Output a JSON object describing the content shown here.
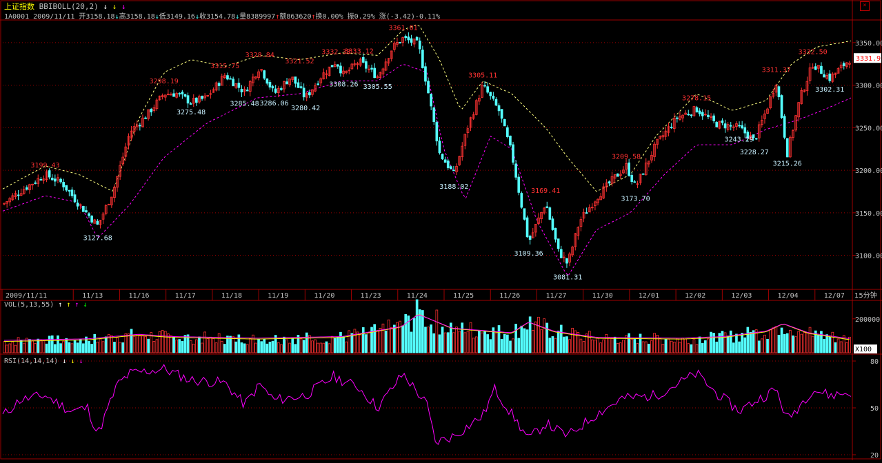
{
  "header": {
    "title": "上证指数",
    "indicator": "BBIBOLL(20,2)",
    "info": {
      "code": "1A0001",
      "date": "2009/11/11",
      "open": "开3158.18",
      "high": "高3158.18",
      "low": "低3149.16",
      "close": "收3154.78",
      "volume": "量8389997",
      "amount": "额863620",
      "turnover": "换0.00%",
      "amplitude": "振0.29%",
      "change": "涨(-3.42)-0.11%"
    }
  },
  "colors": {
    "up": "#ff3232",
    "down": "#54ffff",
    "grid": "#a00000",
    "axis_text": "#c0c0c0",
    "boll_upper": "#ffff80",
    "boll_lower": "#ff00ff",
    "rsi": "#ff00ff"
  },
  "price_panel": {
    "y_ticks": [
      "3350.00",
      "3300.00",
      "3250.00",
      "3200.00",
      "3150.00",
      "3100.00"
    ],
    "last_price": "3331.9",
    "period_label": "15分钟"
  },
  "x_axis": {
    "dates": [
      "2009/11/11",
      "11/13",
      "11/16",
      "11/17",
      "11/18",
      "11/19",
      "11/20",
      "11/23",
      "11/24",
      "11/25",
      "11/26",
      "11/27",
      "11/30",
      "12/01",
      "12/02",
      "12/03",
      "12/04",
      "12/07"
    ]
  },
  "vol_panel": {
    "label": "VOL(5,13,55)",
    "y_tick": "200000",
    "unit": "X100"
  },
  "rsi_panel": {
    "label": "RSI(14,14,14)",
    "y_ticks": [
      "80",
      "50",
      "20"
    ]
  },
  "chart_data": [
    {
      "type": "candlestick",
      "ylim": [
        3060,
        3375
      ],
      "annotations": [
        {
          "text": "3199.43",
          "value": 3199.43,
          "kind": "high",
          "pos": 0.05
        },
        {
          "text": "3127.68",
          "value": 3127.68,
          "kind": "low",
          "pos": 0.112
        },
        {
          "text": "3298.19",
          "value": 3298.19,
          "kind": "high",
          "pos": 0.19
        },
        {
          "text": "3275.48",
          "value": 3275.48,
          "kind": "low",
          "pos": 0.222
        },
        {
          "text": "3315.75",
          "value": 3315.75,
          "kind": "high",
          "pos": 0.262
        },
        {
          "text": "3328.84",
          "value": 3328.84,
          "kind": "high",
          "pos": 0.303
        },
        {
          "text": "3285.48",
          "value": 3285.48,
          "kind": "low",
          "pos": 0.285
        },
        {
          "text": "3286.06",
          "value": 3286.06,
          "kind": "low",
          "pos": 0.32
        },
        {
          "text": "3321.52",
          "value": 3321.52,
          "kind": "high",
          "pos": 0.35
        },
        {
          "text": "3280.42",
          "value": 3280.42,
          "kind": "low",
          "pos": 0.357
        },
        {
          "text": "3332.33",
          "value": 3332.33,
          "kind": "high",
          "pos": 0.393
        },
        {
          "text": "3333.12",
          "value": 3333.12,
          "kind": "high",
          "pos": 0.42
        },
        {
          "text": "3308.26",
          "value": 3308.26,
          "kind": "low",
          "pos": 0.402
        },
        {
          "text": "3305.55",
          "value": 3305.55,
          "kind": "low",
          "pos": 0.442
        },
        {
          "text": "3361.01",
          "value": 3361.01,
          "kind": "high",
          "pos": 0.472
        },
        {
          "text": "3188.02",
          "value": 3188.02,
          "kind": "low",
          "pos": 0.532
        },
        {
          "text": "3305.11",
          "value": 3305.11,
          "kind": "high",
          "pos": 0.566
        },
        {
          "text": "3169.41",
          "value": 3169.41,
          "kind": "high",
          "pos": 0.64
        },
        {
          "text": "3109.36",
          "value": 3109.36,
          "kind": "low",
          "pos": 0.62
        },
        {
          "text": "3081.31",
          "value": 3081.31,
          "kind": "low",
          "pos": 0.666
        },
        {
          "text": "3209.58",
          "value": 3209.58,
          "kind": "high",
          "pos": 0.735
        },
        {
          "text": "3173.70",
          "value": 3173.7,
          "kind": "low",
          "pos": 0.746
        },
        {
          "text": "3278.15",
          "value": 3278.15,
          "kind": "high",
          "pos": 0.818
        },
        {
          "text": "3243.29",
          "value": 3243.29,
          "kind": "low",
          "pos": 0.868
        },
        {
          "text": "3228.27",
          "value": 3228.27,
          "kind": "low",
          "pos": 0.886
        },
        {
          "text": "3311.37",
          "value": 3311.37,
          "kind": "high",
          "pos": 0.912
        },
        {
          "text": "3215.26",
          "value": 3215.26,
          "kind": "low",
          "pos": 0.925
        },
        {
          "text": "3332.50",
          "value": 3332.5,
          "kind": "high",
          "pos": 0.955
        },
        {
          "text": "3302.31",
          "value": 3302.31,
          "kind": "low",
          "pos": 0.975
        }
      ],
      "close_path": [
        [
          0,
          3160
        ],
        [
          0.02,
          3175
        ],
        [
          0.05,
          3195
        ],
        [
          0.07,
          3185
        ],
        [
          0.09,
          3160
        ],
        [
          0.112,
          3135
        ],
        [
          0.13,
          3175
        ],
        [
          0.15,
          3245
        ],
        [
          0.17,
          3265
        ],
        [
          0.19,
          3290
        ],
        [
          0.205,
          3290
        ],
        [
          0.222,
          3280
        ],
        [
          0.24,
          3285
        ],
        [
          0.262,
          3312
        ],
        [
          0.285,
          3292
        ],
        [
          0.303,
          3322
        ],
        [
          0.32,
          3290
        ],
        [
          0.34,
          3310
        ],
        [
          0.357,
          3285
        ],
        [
          0.375,
          3310
        ],
        [
          0.393,
          3328
        ],
        [
          0.402,
          3312
        ],
        [
          0.42,
          3328
        ],
        [
          0.442,
          3310
        ],
        [
          0.46,
          3345
        ],
        [
          0.472,
          3355
        ],
        [
          0.49,
          3348
        ],
        [
          0.5,
          3300
        ],
        [
          0.515,
          3220
        ],
        [
          0.532,
          3195
        ],
        [
          0.548,
          3250
        ],
        [
          0.566,
          3300
        ],
        [
          0.585,
          3270
        ],
        [
          0.6,
          3220
        ],
        [
          0.62,
          3115
        ],
        [
          0.64,
          3162
        ],
        [
          0.655,
          3105
        ],
        [
          0.666,
          3090
        ],
        [
          0.68,
          3140
        ],
        [
          0.7,
          3168
        ],
        [
          0.72,
          3190
        ],
        [
          0.735,
          3205
        ],
        [
          0.746,
          3180
        ],
        [
          0.77,
          3230
        ],
        [
          0.795,
          3262
        ],
        [
          0.818,
          3272
        ],
        [
          0.84,
          3255
        ],
        [
          0.868,
          3250
        ],
        [
          0.886,
          3235
        ],
        [
          0.9,
          3270
        ],
        [
          0.912,
          3305
        ],
        [
          0.925,
          3220
        ],
        [
          0.94,
          3285
        ],
        [
          0.955,
          3325
        ],
        [
          0.975,
          3308
        ],
        [
          1.0,
          3331.9
        ]
      ],
      "upper_band": [
        [
          0,
          3178
        ],
        [
          0.05,
          3205
        ],
        [
          0.09,
          3195
        ],
        [
          0.13,
          3175
        ],
        [
          0.16,
          3260
        ],
        [
          0.19,
          3315
        ],
        [
          0.222,
          3330
        ],
        [
          0.262,
          3322
        ],
        [
          0.303,
          3335
        ],
        [
          0.35,
          3330
        ],
        [
          0.4,
          3338
        ],
        [
          0.442,
          3335
        ],
        [
          0.472,
          3365
        ],
        [
          0.49,
          3372
        ],
        [
          0.515,
          3330
        ],
        [
          0.54,
          3270
        ],
        [
          0.566,
          3305
        ],
        [
          0.6,
          3290
        ],
        [
          0.64,
          3250
        ],
        [
          0.666,
          3215
        ],
        [
          0.7,
          3175
        ],
        [
          0.74,
          3195
        ],
        [
          0.77,
          3240
        ],
        [
          0.818,
          3290
        ],
        [
          0.86,
          3270
        ],
        [
          0.9,
          3282
        ],
        [
          0.93,
          3325
        ],
        [
          0.96,
          3345
        ],
        [
          1.0,
          3352
        ]
      ],
      "lower_band": [
        [
          0,
          3152
        ],
        [
          0.05,
          3170
        ],
        [
          0.09,
          3162
        ],
        [
          0.112,
          3120
        ],
        [
          0.15,
          3160
        ],
        [
          0.19,
          3215
        ],
        [
          0.24,
          3255
        ],
        [
          0.3,
          3285
        ],
        [
          0.35,
          3290
        ],
        [
          0.4,
          3305
        ],
        [
          0.442,
          3305
        ],
        [
          0.472,
          3325
        ],
        [
          0.5,
          3315
        ],
        [
          0.52,
          3225
        ],
        [
          0.545,
          3165
        ],
        [
          0.575,
          3240
        ],
        [
          0.6,
          3225
        ],
        [
          0.63,
          3140
        ],
        [
          0.666,
          3075
        ],
        [
          0.7,
          3130
        ],
        [
          0.74,
          3150
        ],
        [
          0.78,
          3195
        ],
        [
          0.818,
          3230
        ],
        [
          0.86,
          3230
        ],
        [
          0.9,
          3248
        ],
        [
          0.94,
          3260
        ],
        [
          0.97,
          3272
        ],
        [
          1.0,
          3285
        ]
      ]
    },
    {
      "type": "bar",
      "name": "VOL",
      "ylim": [
        0,
        260000
      ],
      "levels": [
        [
          0,
          70000
        ],
        [
          0.1,
          80000
        ],
        [
          0.16,
          110000
        ],
        [
          0.2,
          95000
        ],
        [
          0.3,
          85000
        ],
        [
          0.4,
          95000
        ],
        [
          0.47,
          160000
        ],
        [
          0.49,
          240000
        ],
        [
          0.53,
          150000
        ],
        [
          0.6,
          120000
        ],
        [
          0.62,
          190000
        ],
        [
          0.65,
          130000
        ],
        [
          0.7,
          90000
        ],
        [
          0.8,
          85000
        ],
        [
          0.85,
          95000
        ],
        [
          0.9,
          130000
        ],
        [
          0.92,
          180000
        ],
        [
          0.95,
          120000
        ],
        [
          1.0,
          80000
        ]
      ]
    },
    {
      "type": "line",
      "name": "RSI",
      "ylim": [
        20,
        80
      ],
      "x": [
        0,
        0.02,
        0.05,
        0.08,
        0.1,
        0.112,
        0.135,
        0.15,
        0.19,
        0.22,
        0.262,
        0.285,
        0.303,
        0.32,
        0.357,
        0.39,
        0.42,
        0.442,
        0.472,
        0.5,
        0.51,
        0.532,
        0.566,
        0.58,
        0.62,
        0.64,
        0.666,
        0.7,
        0.73,
        0.77,
        0.818,
        0.84,
        0.868,
        0.886,
        0.912,
        0.925,
        0.955,
        0.975,
        1.0
      ],
      "y": [
        45,
        55,
        58,
        48,
        50,
        33,
        65,
        72,
        75,
        68,
        66,
        52,
        65,
        55,
        58,
        70,
        63,
        50,
        72,
        52,
        28,
        32,
        45,
        62,
        30,
        40,
        32,
        46,
        56,
        58,
        72,
        60,
        48,
        54,
        62,
        42,
        62,
        58,
        60
      ]
    }
  ]
}
